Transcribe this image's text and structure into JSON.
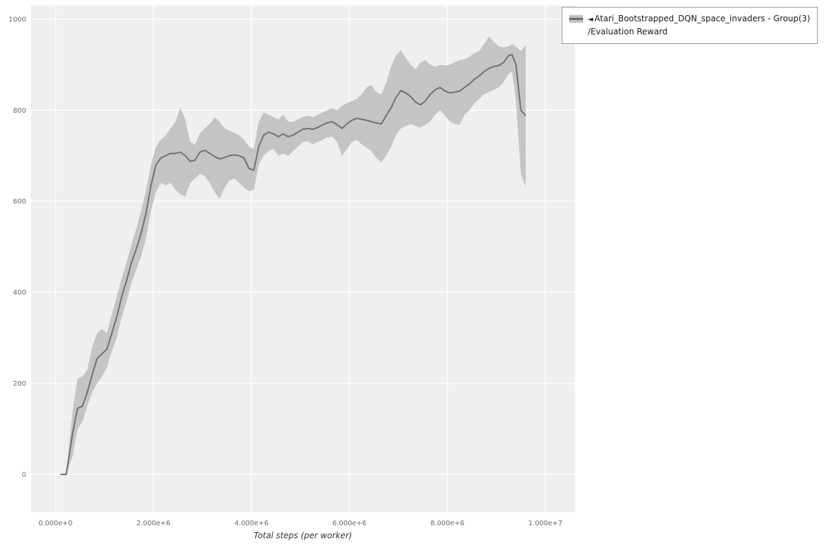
{
  "legend": {
    "collapse_icon": "◄",
    "line1": "Atari_Bootstrapped_DQN_space_invaders - Group(3)",
    "line2": "/Evaluation Reward"
  },
  "chart_data": {
    "type": "line",
    "title": "",
    "xlabel": "Total steps (per worker)",
    "ylabel": "",
    "xlim": [
      -500000.0,
      10600000.0
    ],
    "ylim": [
      -83,
      1030
    ],
    "grid": true,
    "legend_position": "top-right-outside",
    "x_ticks": [
      {
        "v": 0,
        "label": "0.000e+0"
      },
      {
        "v": 2000000.0,
        "label": "2.000e+6"
      },
      {
        "v": 4000000.0,
        "label": "4.000e+6"
      },
      {
        "v": 6000000.0,
        "label": "6.000e+6"
      },
      {
        "v": 8000000.0,
        "label": "8.000e+6"
      },
      {
        "v": 10000000.0,
        "label": "1.000e+7"
      }
    ],
    "y_ticks": [
      {
        "v": 0,
        "label": "0"
      },
      {
        "v": 200,
        "label": "200"
      },
      {
        "v": 400,
        "label": "400"
      },
      {
        "v": 600,
        "label": "600"
      },
      {
        "v": 800,
        "label": "800"
      },
      {
        "v": 1000,
        "label": "1000"
      }
    ],
    "colors": {
      "plot_bg": "#efefef",
      "grid": "#ffffff",
      "line": "#6e6e6e",
      "band": "#c4c4c4",
      "tick_text": "#666666"
    },
    "series": [
      {
        "name": "Atari_Bootstrapped_DQN_space_invaders - Group(3)/Evaluation Reward",
        "x": [
          100000.0,
          220000.0,
          350000.0,
          450000.0,
          550000.0,
          650000.0,
          750000.0,
          850000.0,
          950000.0,
          1050000.0,
          1150000.0,
          1250000.0,
          1350000.0,
          1450000.0,
          1550000.0,
          1650000.0,
          1750000.0,
          1850000.0,
          1950000.0,
          2050000.0,
          2150000.0,
          2250000.0,
          2350000.0,
          2450000.0,
          2550000.0,
          2650000.0,
          2750000.0,
          2850000.0,
          2950000.0,
          3050000.0,
          3150000.0,
          3250000.0,
          3350000.0,
          3450000.0,
          3550000.0,
          3650000.0,
          3750000.0,
          3850000.0,
          3950000.0,
          4050000.0,
          4150000.0,
          4250000.0,
          4350000.0,
          4450000.0,
          4550000.0,
          4650000.0,
          4750000.0,
          4850000.0,
          4950000.0,
          5050000.0,
          5150000.0,
          5250000.0,
          5350000.0,
          5450000.0,
          5550000.0,
          5650000.0,
          5750000.0,
          5850000.0,
          5950000.0,
          6050000.0,
          6150000.0,
          6250000.0,
          6350000.0,
          6450000.0,
          6550000.0,
          6650000.0,
          6750000.0,
          6850000.0,
          6950000.0,
          7050000.0,
          7150000.0,
          7250000.0,
          7350000.0,
          7450000.0,
          7550000.0,
          7650000.0,
          7750000.0,
          7850000.0,
          7950000.0,
          8050000.0,
          8150000.0,
          8250000.0,
          8350000.0,
          8450000.0,
          8550000.0,
          8650000.0,
          8750000.0,
          8850000.0,
          8950000.0,
          9050000.0,
          9150000.0,
          9250000.0,
          9320000.0,
          9400000.0,
          9500000.0,
          9600000.0
        ],
        "y": [
          0,
          0,
          90,
          145,
          150,
          180,
          220,
          255,
          265,
          275,
          310,
          345,
          390,
          425,
          465,
          495,
          530,
          575,
          635,
          680,
          695,
          700,
          705,
          705,
          708,
          700,
          688,
          690,
          708,
          712,
          705,
          698,
          693,
          696,
          700,
          702,
          700,
          695,
          672,
          668,
          720,
          745,
          752,
          748,
          742,
          748,
          742,
          745,
          752,
          758,
          760,
          758,
          762,
          768,
          772,
          775,
          768,
          760,
          770,
          778,
          782,
          780,
          778,
          775,
          772,
          770,
          788,
          805,
          828,
          843,
          838,
          830,
          818,
          812,
          820,
          835,
          845,
          850,
          842,
          838,
          840,
          842,
          850,
          858,
          868,
          875,
          885,
          892,
          896,
          898,
          905,
          920,
          922,
          900,
          800,
          788
        ],
        "band_lower": [
          0,
          0,
          40,
          100,
          115,
          150,
          180,
          200,
          215,
          235,
          270,
          300,
          345,
          380,
          420,
          450,
          480,
          520,
          580,
          620,
          640,
          635,
          640,
          625,
          615,
          610,
          640,
          650,
          660,
          655,
          640,
          620,
          605,
          630,
          645,
          650,
          640,
          630,
          622,
          625,
          680,
          700,
          710,
          715,
          700,
          705,
          700,
          710,
          720,
          730,
          732,
          725,
          730,
          735,
          740,
          742,
          730,
          700,
          715,
          730,
          735,
          725,
          718,
          710,
          695,
          685,
          700,
          720,
          745,
          760,
          765,
          770,
          765,
          762,
          768,
          775,
          790,
          800,
          788,
          775,
          770,
          768,
          790,
          800,
          815,
          825,
          835,
          840,
          845,
          850,
          862,
          880,
          885,
          820,
          660,
          632
        ],
        "band_upper": [
          0,
          0,
          140,
          210,
          215,
          230,
          280,
          310,
          320,
          310,
          350,
          390,
          430,
          465,
          505,
          540,
          580,
          625,
          680,
          720,
          735,
          745,
          760,
          775,
          805,
          780,
          730,
          725,
          750,
          760,
          770,
          785,
          775,
          760,
          755,
          750,
          745,
          735,
          720,
          715,
          775,
          795,
          790,
          785,
          780,
          790,
          775,
          775,
          780,
          785,
          788,
          785,
          790,
          795,
          800,
          805,
          800,
          810,
          815,
          820,
          825,
          835,
          850,
          855,
          840,
          835,
          860,
          895,
          920,
          932,
          915,
          900,
          890,
          905,
          910,
          900,
          895,
          900,
          898,
          900,
          905,
          910,
          912,
          918,
          925,
          930,
          945,
          962,
          950,
          940,
          938,
          940,
          945,
          940,
          930,
          943
        ]
      }
    ]
  }
}
